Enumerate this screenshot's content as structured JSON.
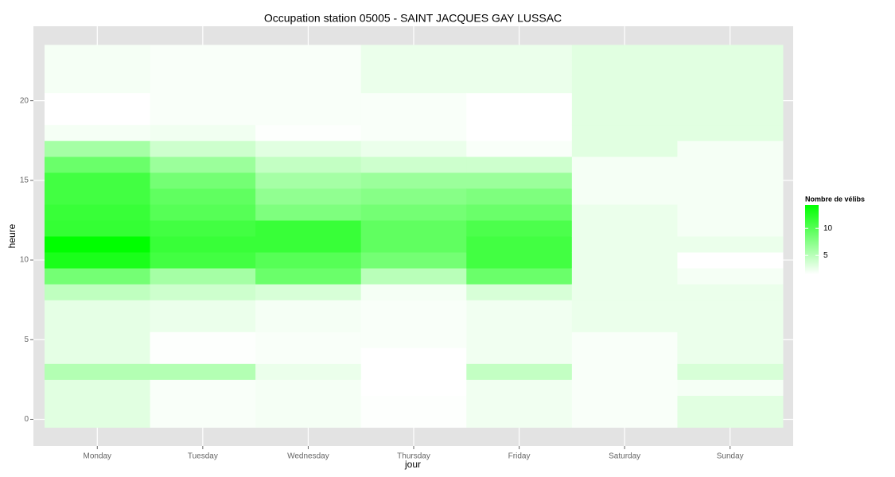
{
  "chart_data": {
    "type": "heatmap",
    "title": "Occupation station 05005 - SAINT JACQUES GAY LUSSAC",
    "x_label": "jour",
    "y_label": "heure",
    "categories": [
      "Monday",
      "Tuesday",
      "Wednesday",
      "Thursday",
      "Friday",
      "Saturday",
      "Sunday"
    ],
    "y": [
      0,
      1,
      2,
      3,
      4,
      5,
      6,
      7,
      8,
      9,
      10,
      11,
      12,
      13,
      14,
      15,
      16,
      17,
      18,
      19,
      20,
      21,
      22,
      23
    ],
    "values": [
      [
        3,
        3,
        3,
        5.3,
        2.8,
        2.8,
        2.8,
        2.8,
        4.7,
        8.5,
        13,
        14.3,
        11.7,
        11.5,
        11,
        11,
        9,
        6,
        2,
        1.5,
        1.5,
        2,
        2,
        2
      ],
      [
        1.8,
        1.8,
        1.8,
        5.3,
        1.6,
        1.6,
        2.5,
        2.5,
        4,
        6,
        11,
        11.5,
        11,
        10,
        9.5,
        8.5,
        6.5,
        4,
        2.2,
        1.8,
        1.8,
        1.8,
        1.8,
        1.8
      ],
      [
        2,
        2,
        2,
        2.5,
        1.8,
        1.8,
        2,
        2,
        3.5,
        9,
        10,
        11.5,
        11.5,
        8,
        7,
        6,
        4.5,
        3,
        1.6,
        1.8,
        1.8,
        1.8,
        1.8,
        1.8
      ],
      [
        1.6,
        1.6,
        1.5,
        1.5,
        1.5,
        1.8,
        1.8,
        1.8,
        2,
        5,
        8.5,
        9.5,
        9.5,
        8.5,
        7.5,
        6.5,
        4,
        2.5,
        1.8,
        1.8,
        1.8,
        2.5,
        2.5,
        2.5
      ],
      [
        2.2,
        2.2,
        2.2,
        4.5,
        2.2,
        2.2,
        2.2,
        2.2,
        3.5,
        9,
        11,
        11,
        10.5,
        9,
        8,
        6.5,
        4,
        1.8,
        1.5,
        1.5,
        1.5,
        2.5,
        2.5,
        2.5
      ],
      [
        1.8,
        1.8,
        1.8,
        1.8,
        1.8,
        1.8,
        2.5,
        2.5,
        2.5,
        2.5,
        2.5,
        2.5,
        2.5,
        2.5,
        2,
        2,
        2,
        3,
        3,
        3,
        3,
        3,
        3,
        3
      ],
      [
        3,
        3,
        2,
        3.5,
        2.5,
        2.5,
        2.5,
        2.5,
        2.5,
        2,
        1.5,
        2.5,
        2,
        2,
        2,
        2,
        2,
        2,
        3,
        3,
        3,
        3,
        3,
        3
      ]
    ],
    "ylim": [
      -0.5,
      23.5
    ],
    "yticks": [
      0,
      5,
      10,
      15,
      20
    ],
    "grid": true,
    "color_low": "#ffffff",
    "color_high": "#00ff00",
    "legend": {
      "title": "Nombre de vélibs",
      "lim": [
        1.5,
        14.3
      ],
      "ticks": [
        5,
        10
      ]
    }
  }
}
